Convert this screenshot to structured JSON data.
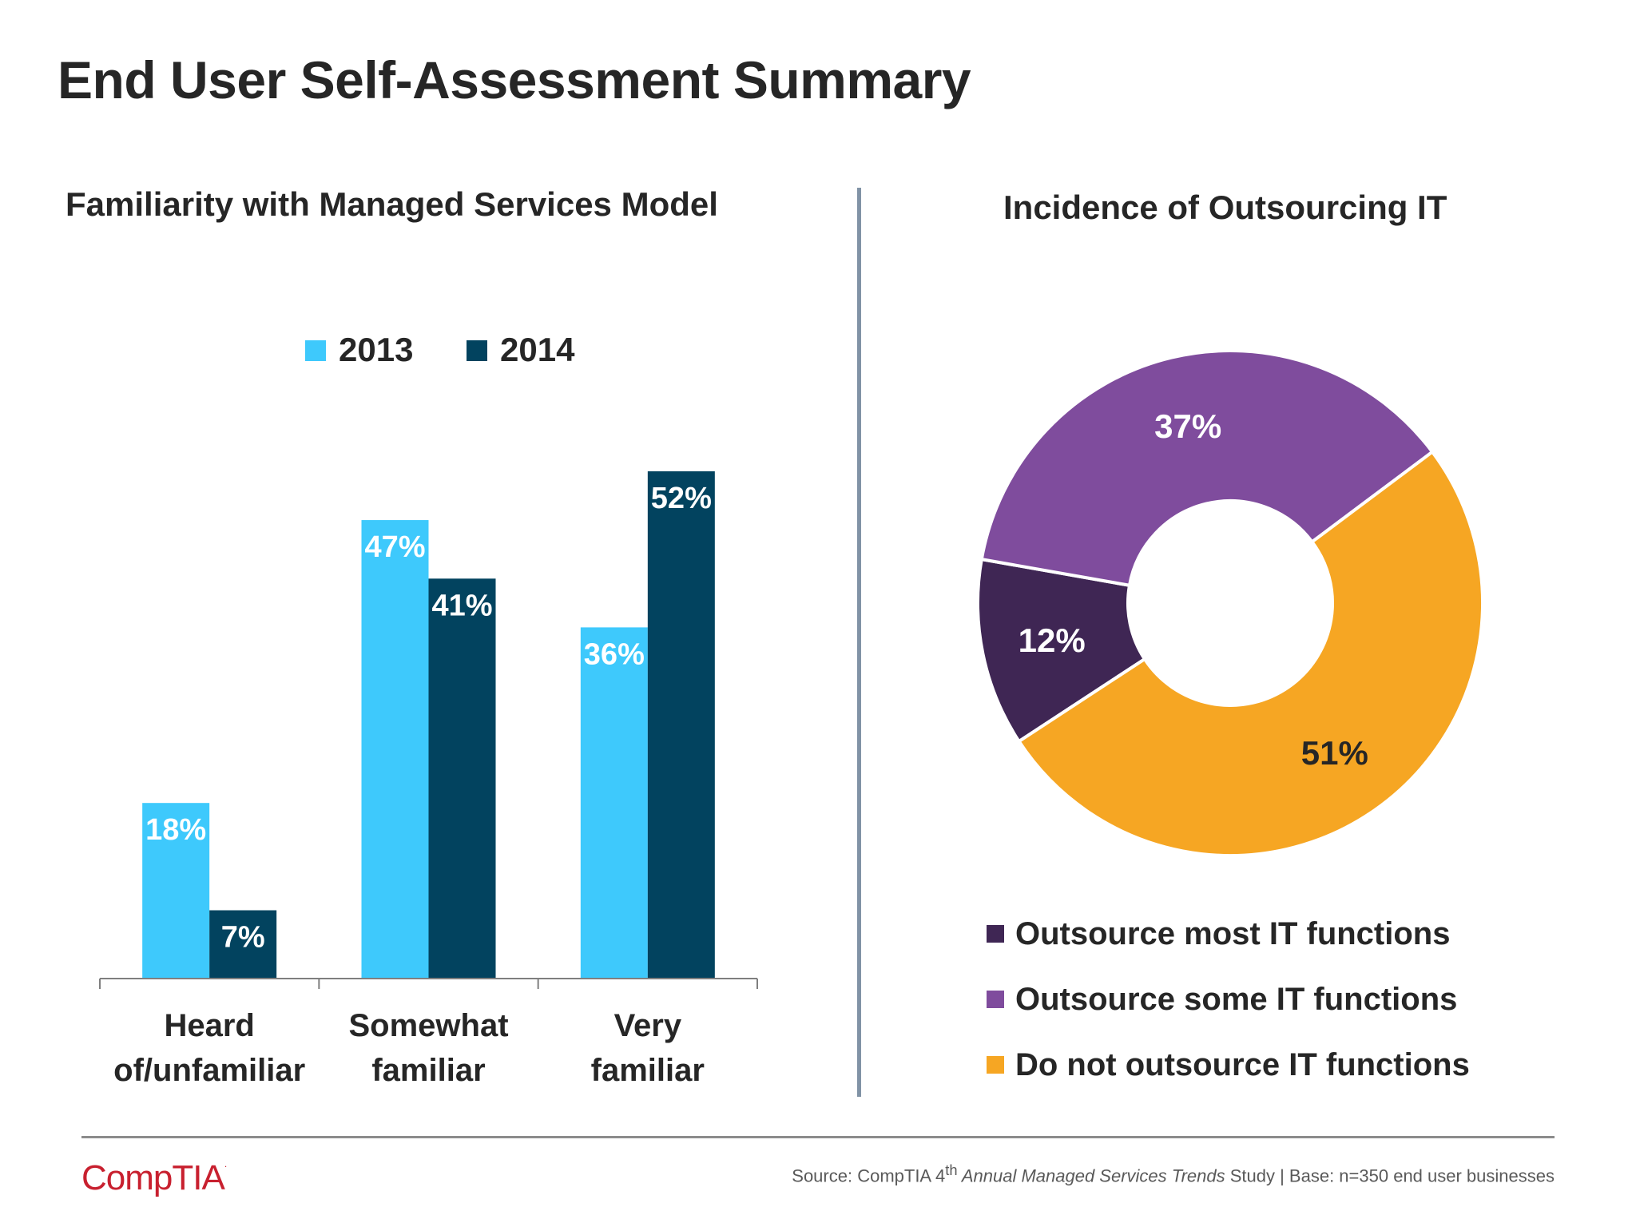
{
  "slide": {
    "title": "End User Self-Assessment Summary"
  },
  "left_panel": {
    "title": "Familiarity with Managed Services Model"
  },
  "right_panel": {
    "title": "Incidence of Outsourcing IT"
  },
  "footer": {
    "source_prefix": "Source: CompTIA 4",
    "source_sup": "th",
    "source_italic": " Annual Managed Services Trends",
    "source_suffix": " Study | Base: n=350 end user businesses",
    "logo_text": "CompTIA",
    "logo_mark": "."
  },
  "colors": {
    "series_2013": "#3ec9fc",
    "series_2014": "#02435f",
    "outsource_most": "#3f2654",
    "outsource_some": "#7f4c9d",
    "do_not_outsource": "#f6a623"
  },
  "chart_data": [
    {
      "type": "bar",
      "title": "Familiarity with Managed Services Model",
      "categories": [
        [
          "Heard",
          "of/unfamiliar"
        ],
        [
          "Somewhat",
          "familiar"
        ],
        [
          "Very",
          "familiar"
        ]
      ],
      "series": [
        {
          "name": "2013",
          "values": [
            18,
            47,
            36
          ],
          "labels": [
            "18%",
            "47%",
            "36%"
          ]
        },
        {
          "name": "2014",
          "values": [
            7,
            41,
            52
          ],
          "labels": [
            "7%",
            "41%",
            "52%"
          ]
        }
      ],
      "ylim": [
        0,
        52
      ],
      "legend": "top",
      "grid": false
    },
    {
      "type": "pie",
      "style": "donut",
      "title": "Incidence of Outsourcing IT",
      "slices": [
        {
          "name": "Outsource most IT functions",
          "value": 12,
          "label": "12%"
        },
        {
          "name": "Outsource some IT functions",
          "value": 37,
          "label": "37%"
        },
        {
          "name": "Do not outsource IT functions",
          "value": 51,
          "label": "51%"
        }
      ],
      "legend": "bottom"
    }
  ]
}
